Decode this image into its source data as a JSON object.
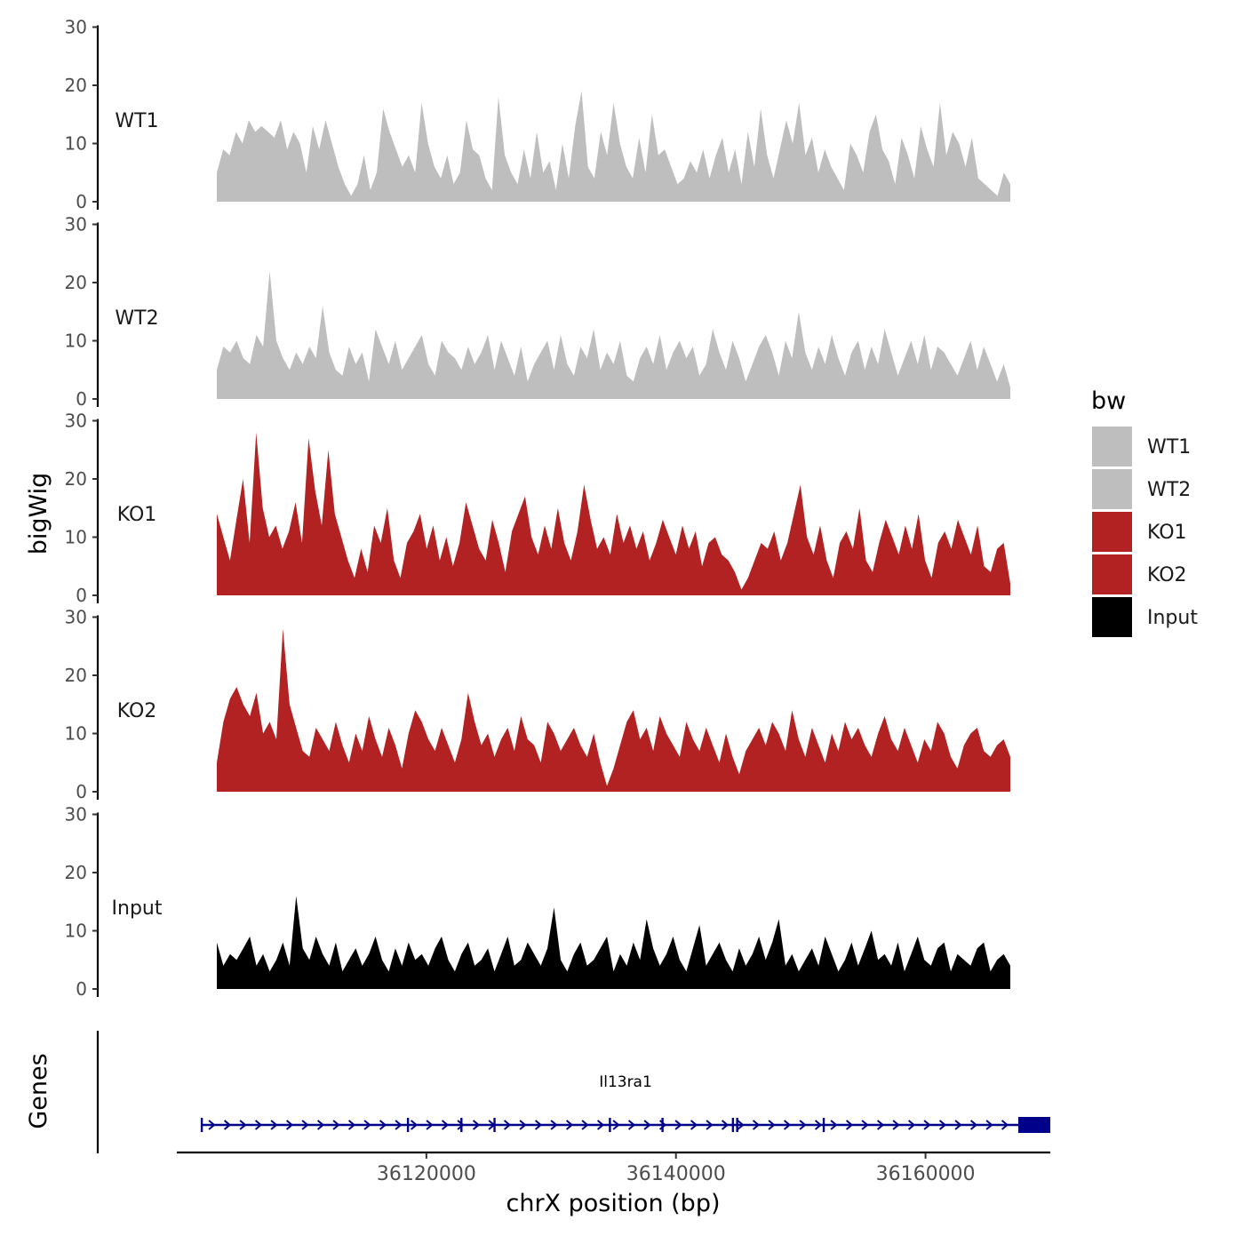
{
  "chart_data": {
    "type": "area",
    "ylabel": "bigWig",
    "xlabel": "chrX position (bp)",
    "ylim": [
      0,
      30
    ],
    "yticks": [
      0,
      10,
      20,
      30
    ],
    "xlim": [
      36100000,
      36170000
    ],
    "xticks": [
      36120000,
      36140000,
      36160000
    ],
    "xtick_labels": [
      "36120000",
      "36140000",
      "36160000"
    ],
    "legend_title": "bw",
    "legend": [
      {
        "name": "WT1",
        "color": "#bebebe"
      },
      {
        "name": "WT2",
        "color": "#bebebe"
      },
      {
        "name": "KO1",
        "color": "#b22222"
      },
      {
        "name": "KO2",
        "color": "#b22222"
      },
      {
        "name": "Input",
        "color": "#000000"
      }
    ],
    "tracks": [
      {
        "name": "WT1",
        "color": "#bebebe",
        "values": [
          5,
          9,
          8,
          12,
          10,
          14,
          12,
          13,
          12,
          11,
          14,
          9,
          12,
          10,
          5,
          13,
          9,
          14,
          10,
          6,
          3,
          1,
          3,
          8,
          2,
          5,
          16,
          12,
          9,
          6,
          8,
          5,
          17,
          10,
          6,
          4,
          8,
          3,
          5,
          14,
          9,
          8,
          4,
          2,
          18,
          8,
          5,
          3,
          9,
          4,
          12,
          5,
          7,
          2,
          10,
          4,
          13,
          19,
          6,
          4,
          12,
          8,
          17,
          10,
          6,
          4,
          11,
          5,
          15,
          8,
          9,
          6,
          3,
          4,
          7,
          5,
          9,
          4,
          8,
          11,
          5,
          9,
          3,
          12,
          6,
          16,
          8,
          4,
          9,
          14,
          10,
          17,
          8,
          11,
          5,
          9,
          6,
          4,
          2,
          10,
          8,
          5,
          12,
          15,
          9,
          7,
          3,
          11,
          8,
          4,
          13,
          9,
          6,
          17,
          8,
          12,
          10,
          6,
          11,
          4,
          3,
          2,
          1,
          5,
          3
        ]
      },
      {
        "name": "WT2",
        "color": "#bebebe",
        "values": [
          5,
          9,
          8,
          10,
          7,
          6,
          11,
          9,
          22,
          10,
          7,
          5,
          8,
          6,
          9,
          7,
          16,
          8,
          5,
          4,
          9,
          6,
          8,
          3,
          12,
          9,
          6,
          10,
          5,
          7,
          9,
          11,
          6,
          4,
          10,
          8,
          7,
          5,
          9,
          6,
          8,
          11,
          5,
          10,
          7,
          4,
          9,
          3,
          6,
          8,
          10,
          5,
          11,
          6,
          4,
          9,
          7,
          12,
          5,
          8,
          6,
          10,
          4,
          3,
          7,
          9,
          6,
          11,
          5,
          8,
          10,
          7,
          9,
          4,
          6,
          12,
          8,
          5,
          10,
          7,
          3,
          6,
          9,
          11,
          8,
          4,
          10,
          7,
          15,
          8,
          5,
          9,
          6,
          11,
          7,
          4,
          8,
          10,
          5,
          9,
          6,
          12,
          8,
          4,
          7,
          10,
          6,
          11,
          5,
          9,
          8,
          6,
          4,
          7,
          10,
          5,
          9,
          6,
          3,
          6,
          2
        ]
      },
      {
        "name": "KO1",
        "color": "#b22222",
        "values": [
          14,
          10,
          6,
          13,
          20,
          9,
          28,
          15,
          10,
          12,
          8,
          11,
          16,
          9,
          27,
          18,
          12,
          25,
          14,
          10,
          6,
          3,
          8,
          4,
          12,
          9,
          15,
          6,
          3,
          9,
          11,
          14,
          8,
          12,
          6,
          10,
          5,
          9,
          16,
          12,
          8,
          6,
          13,
          9,
          4,
          11,
          14,
          17,
          10,
          7,
          12,
          8,
          15,
          9,
          6,
          11,
          19,
          13,
          8,
          10,
          7,
          14,
          9,
          12,
          8,
          11,
          6,
          9,
          13,
          10,
          7,
          12,
          8,
          11,
          5,
          9,
          10,
          7,
          6,
          4,
          1,
          3,
          6,
          9,
          8,
          11,
          6,
          9,
          14,
          19,
          10,
          7,
          12,
          6,
          3,
          9,
          11,
          8,
          15,
          6,
          4,
          9,
          13,
          10,
          7,
          12,
          8,
          14,
          6,
          3,
          9,
          11,
          8,
          13,
          10,
          7,
          12,
          5,
          4,
          8,
          9,
          2
        ]
      },
      {
        "name": "KO2",
        "color": "#b22222",
        "values": [
          5,
          12,
          16,
          18,
          15,
          13,
          17,
          10,
          12,
          9,
          28,
          15,
          11,
          7,
          6,
          11,
          9,
          7,
          12,
          8,
          5,
          10,
          7,
          13,
          9,
          6,
          11,
          8,
          4,
          10,
          14,
          12,
          9,
          7,
          11,
          8,
          5,
          9,
          17,
          12,
          8,
          10,
          6,
          9,
          11,
          7,
          13,
          9,
          8,
          5,
          12,
          10,
          7,
          9,
          11,
          8,
          6,
          10,
          5,
          1,
          4,
          8,
          12,
          14,
          9,
          11,
          7,
          13,
          10,
          8,
          6,
          12,
          9,
          7,
          11,
          8,
          5,
          10,
          6,
          3,
          7,
          9,
          11,
          8,
          12,
          10,
          7,
          14,
          9,
          6,
          11,
          8,
          5,
          10,
          7,
          12,
          9,
          11,
          8,
          6,
          10,
          13,
          9,
          7,
          11,
          8,
          5,
          9,
          7,
          12,
          10,
          6,
          4,
          8,
          10,
          11,
          7,
          6,
          8,
          9,
          6
        ]
      },
      {
        "name": "Input",
        "color": "#000000",
        "values": [
          8,
          4,
          6,
          5,
          7,
          9,
          4,
          6,
          3,
          5,
          8,
          4,
          16,
          7,
          5,
          9,
          6,
          4,
          8,
          3,
          5,
          7,
          4,
          6,
          9,
          5,
          3,
          7,
          4,
          8,
          5,
          6,
          4,
          7,
          9,
          5,
          3,
          6,
          8,
          4,
          5,
          7,
          3,
          6,
          9,
          4,
          5,
          8,
          6,
          4,
          7,
          14,
          5,
          3,
          6,
          8,
          4,
          5,
          7,
          9,
          3,
          6,
          4,
          8,
          5,
          12,
          7,
          4,
          6,
          9,
          5,
          3,
          7,
          11,
          4,
          6,
          8,
          5,
          3,
          7,
          4,
          6,
          9,
          5,
          8,
          12,
          4,
          6,
          3,
          5,
          7,
          4,
          9,
          6,
          3,
          5,
          8,
          4,
          7,
          10,
          5,
          6,
          4,
          8,
          3,
          6,
          9,
          5,
          4,
          7,
          8,
          3,
          6,
          5,
          4,
          7,
          8,
          3,
          5,
          6,
          4
        ]
      }
    ],
    "genes_panel": {
      "label": "Genes",
      "gene_name": "Il13ra1",
      "strand": "+",
      "start": 36102000,
      "end": 36170000
    }
  }
}
